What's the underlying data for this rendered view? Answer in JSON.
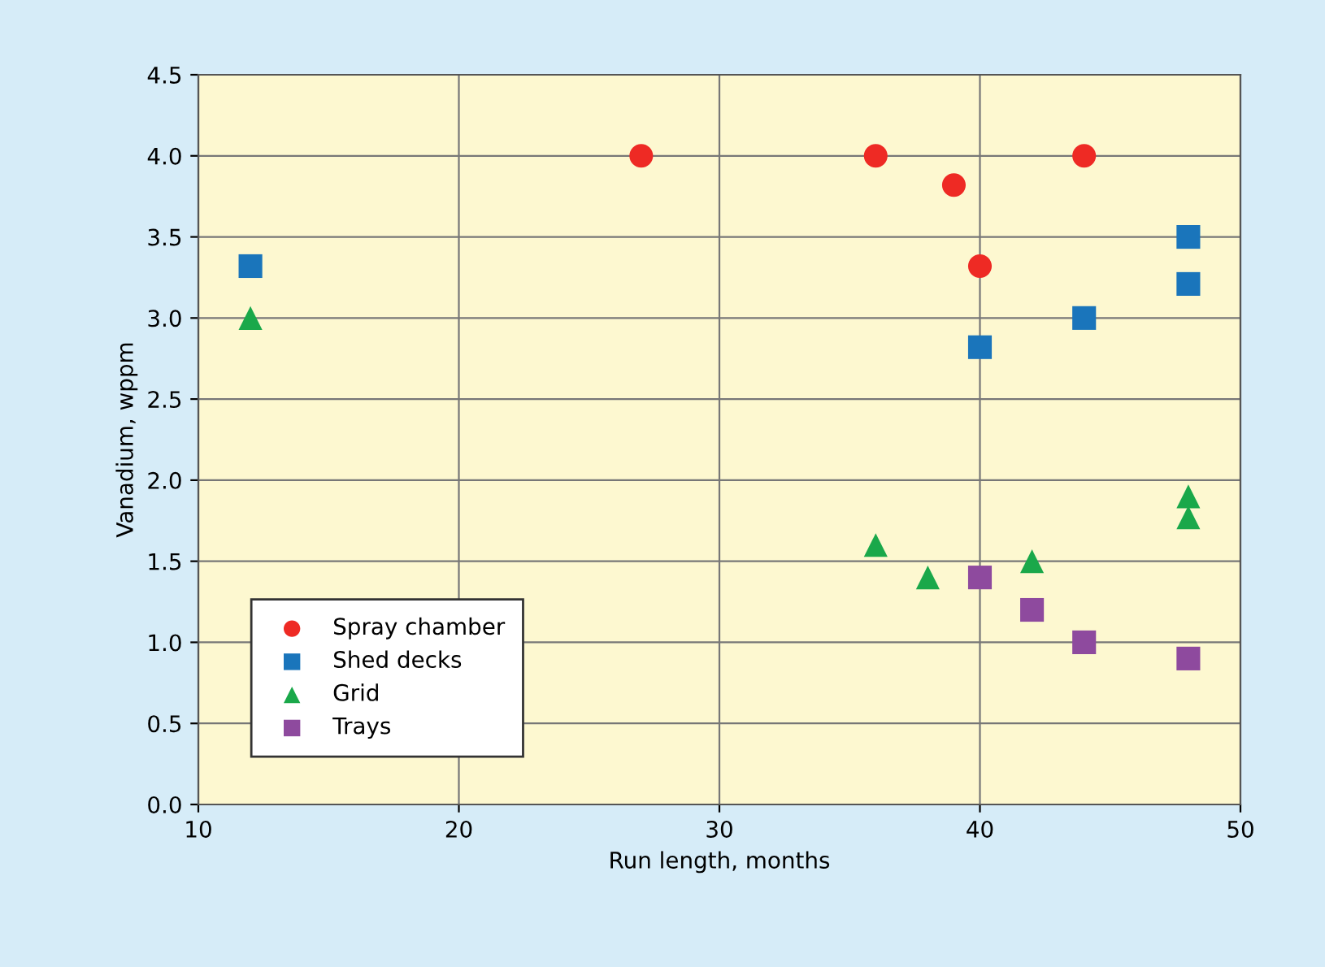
{
  "chart_data": {
    "type": "scatter",
    "xlabel": "Run length, months",
    "ylabel": "Vanadium, wppm",
    "series": [
      {
        "name": "Spray chamber",
        "color": "#ee2a24",
        "marker": "circle",
        "x": [
          27,
          36,
          39,
          40,
          44
        ],
        "values": [
          4.0,
          4.0,
          3.82,
          3.32,
          4.0
        ]
      },
      {
        "name": "Shed decks",
        "color": "#1a75bb",
        "marker": "square",
        "x": [
          12,
          40,
          44,
          48,
          48
        ],
        "values": [
          3.32,
          2.82,
          3.0,
          3.5,
          3.21
        ]
      },
      {
        "name": "Grid",
        "color": "#1aa84a",
        "marker": "triangle",
        "x": [
          12,
          36,
          38,
          42,
          48,
          48
        ],
        "values": [
          3.0,
          1.6,
          1.4,
          1.5,
          1.9,
          1.77
        ]
      },
      {
        "name": "Trays",
        "color": "#8e4a9e",
        "marker": "square",
        "x": [
          40,
          42,
          44,
          48
        ],
        "values": [
          1.4,
          1.2,
          1.0,
          0.9
        ]
      }
    ],
    "xlim": [
      10,
      50
    ],
    "xticks": [
      10,
      20,
      30,
      40,
      50
    ],
    "ylim": [
      0,
      4.5
    ],
    "yticks": [
      {
        "value": 0,
        "label": "0.0"
      },
      0.5,
      {
        "value": 1,
        "label": "1.0"
      },
      1.5,
      {
        "value": 2,
        "label": "2.0"
      },
      2.5,
      {
        "value": 3,
        "label": "3.0"
      },
      3.5,
      {
        "value": 4,
        "label": "4.0"
      },
      4.5
    ],
    "grid": true,
    "legend": "bottom left"
  }
}
